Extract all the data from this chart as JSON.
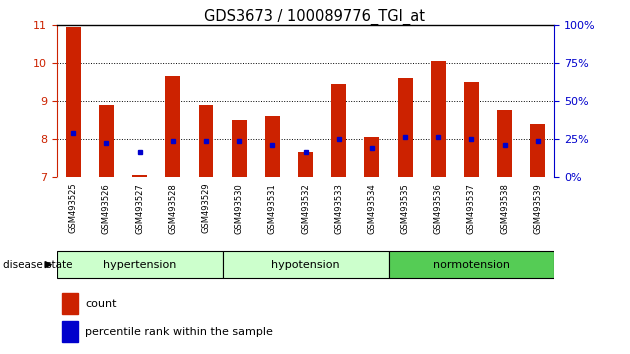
{
  "title": "GDS3673 / 100089776_TGI_at",
  "samples": [
    "GSM493525",
    "GSM493526",
    "GSM493527",
    "GSM493528",
    "GSM493529",
    "GSM493530",
    "GSM493531",
    "GSM493532",
    "GSM493533",
    "GSM493534",
    "GSM493535",
    "GSM493536",
    "GSM493537",
    "GSM493538",
    "GSM493539"
  ],
  "count_values": [
    10.95,
    8.9,
    7.05,
    9.65,
    8.9,
    8.5,
    8.6,
    7.65,
    9.45,
    8.05,
    9.6,
    10.05,
    9.5,
    8.75,
    8.4
  ],
  "percentile_values": [
    8.15,
    7.9,
    7.65,
    7.95,
    7.95,
    7.95,
    7.85,
    7.65,
    8.0,
    7.75,
    8.05,
    8.05,
    8.0,
    7.85,
    7.95
  ],
  "ylim_left": [
    7,
    11
  ],
  "ylim_right": [
    0,
    100
  ],
  "yticks_left": [
    7,
    8,
    9,
    10,
    11
  ],
  "yticks_right": [
    0,
    25,
    50,
    75,
    100
  ],
  "bar_color": "#cc2200",
  "percentile_color": "#0000cc",
  "bar_width": 0.45,
  "group_labels": [
    "hypertension",
    "hypotension",
    "normotension"
  ],
  "group_ranges": [
    [
      0,
      4
    ],
    [
      5,
      9
    ],
    [
      10,
      14
    ]
  ],
  "group_colors": [
    "#ccffcc",
    "#ccffcc",
    "#55cc55"
  ],
  "disease_state_label": "disease state",
  "legend_count_label": "count",
  "legend_percentile_label": "percentile rank within the sample",
  "background_color": "#ffffff",
  "tick_color_left": "#cc2200",
  "tick_color_right": "#0000cc",
  "plot_bg": "#ffffff",
  "xtick_bg": "#cccccc"
}
